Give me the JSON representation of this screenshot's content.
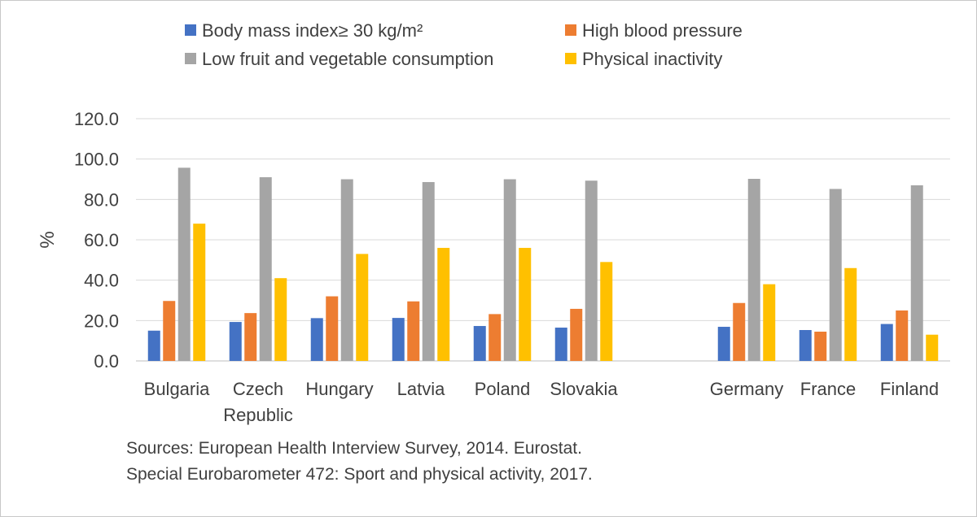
{
  "chart_data": {
    "type": "bar",
    "title": "",
    "xlabel": "",
    "ylabel": "%",
    "ylim": [
      0,
      120
    ],
    "yticks": [
      "0.0",
      "20.0",
      "40.0",
      "60.0",
      "80.0",
      "100.0",
      "120.0"
    ],
    "grid": true,
    "legend_position": "top",
    "categories": [
      "Bulgaria",
      "Czech Republic",
      "Hungary",
      "Latvia",
      "Poland",
      "Slovakia",
      "",
      "Germany",
      "France",
      "Finland"
    ],
    "category_lines": [
      [
        "Bulgaria"
      ],
      [
        "Czech",
        "Republic"
      ],
      [
        "Hungary"
      ],
      [
        "Latvia"
      ],
      [
        "Poland"
      ],
      [
        "Slovakia"
      ],
      [],
      [
        "Germany"
      ],
      [
        "France"
      ],
      [
        "Finland"
      ]
    ],
    "series": [
      {
        "name": "Body mass index≥ 30 kg/m²",
        "color": "#4472c4",
        "values": [
          15.0,
          19.3,
          21.2,
          21.3,
          17.3,
          16.5,
          null,
          16.9,
          15.3,
          18.3
        ]
      },
      {
        "name": "High blood pressure",
        "color": "#ed7d31",
        "values": [
          29.7,
          23.7,
          32.0,
          29.5,
          23.2,
          25.8,
          null,
          28.7,
          14.5,
          25.0
        ]
      },
      {
        "name": "Low fruit and vegetable consumption",
        "color": "#a5a5a5",
        "values": [
          95.7,
          91.0,
          90.0,
          88.6,
          90.0,
          89.3,
          null,
          90.2,
          85.2,
          87.0
        ]
      },
      {
        "name": "Physical inactivity",
        "color": "#ffc000",
        "values": [
          68.0,
          41.0,
          53.0,
          56.0,
          56.0,
          49.0,
          null,
          38.0,
          46.0,
          13.0
        ]
      }
    ]
  },
  "sources": {
    "line1": "Sources: European Health Interview Survey, 2014. Eurostat.",
    "line2": "Special Eurobarometer 472: Sport and physical activity, 2017."
  }
}
